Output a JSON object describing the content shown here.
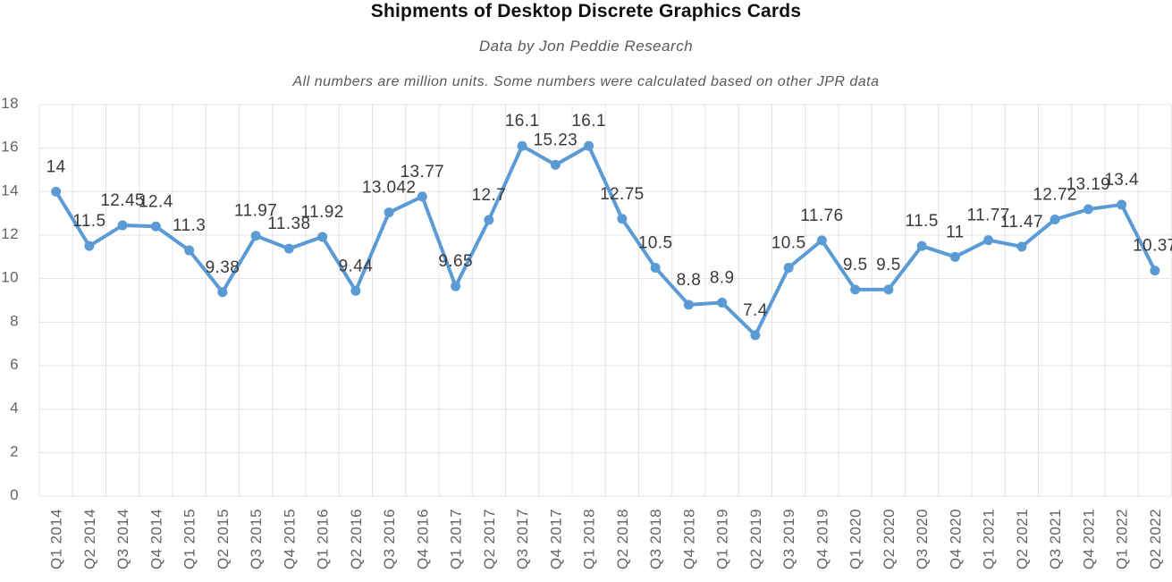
{
  "header": {
    "title": "Shipments of Desktop Discrete Graphics Cards",
    "subtitle_source": "Data by Jon Peddie Research",
    "subtitle_note": "All numbers are million units. Some numbers were calculated based on other JPR data"
  },
  "colors": {
    "line": "#5b9bd5",
    "marker": "#5b9bd5",
    "grid": "#e4e4e4",
    "axis_text": "#646464",
    "point_label_text": "#3a3a3a",
    "title_text": "#0f0f0f",
    "subtitle_text": "#595959",
    "background": "#ffffff"
  },
  "chart_data": {
    "type": "line",
    "title": "Shipments of Desktop Discrete Graphics Cards",
    "subtitle": "Data by Jon Peddie Research",
    "note": "All numbers are million units. Some numbers were calculated based on other JPR data",
    "unit": "million units",
    "categories": [
      "Q1 2014",
      "Q2 2014",
      "Q3 2014",
      "Q4 2014",
      "Q1 2015",
      "Q2 2015",
      "Q3 2015",
      "Q4 2015",
      "Q1 2016",
      "Q2 2016",
      "Q3 2016",
      "Q4 2016",
      "Q1 2017",
      "Q2 2017",
      "Q3 2017",
      "Q4 2017",
      "Q1 2018",
      "Q2 2018",
      "Q3 2018",
      "Q4 2018",
      "Q1 2019",
      "Q2 2019",
      "Q3 2019",
      "Q4 2019",
      "Q1 2020",
      "Q2 2020",
      "Q3 2020",
      "Q4 2020",
      "Q1 2021",
      "Q2 2021",
      "Q3 2021",
      "Q4 2021",
      "Q1 2022",
      "Q2 2022"
    ],
    "values": [
      14,
      11.5,
      12.45,
      12.4,
      11.3,
      9.38,
      11.97,
      11.38,
      11.92,
      9.44,
      13.042,
      13.77,
      9.65,
      12.7,
      16.1,
      15.23,
      16.1,
      12.75,
      10.5,
      8.8,
      8.9,
      7.4,
      10.5,
      11.76,
      9.5,
      9.5,
      11.5,
      11,
      11.77,
      11.47,
      12.72,
      13.19,
      13.4,
      10.37
    ],
    "point_labels": [
      "14",
      "11.5",
      "12.45",
      "12.4",
      "11.3",
      "9.38",
      "11.97",
      "11.38",
      "11.92",
      "9.44",
      "13.042",
      "13.77",
      "9.65",
      "12.7",
      "16.1",
      "15.23",
      "16.1",
      "12.75",
      "10.5",
      "8.8",
      "8.9",
      "7.4",
      "10.5",
      "11.76",
      "9.5",
      "9.5",
      "11.5",
      "11",
      "11.77",
      "11.47",
      "12.72",
      "13.19",
      "13.4",
      "10.37"
    ],
    "xlabel": "",
    "ylabel": "",
    "ylim": [
      0,
      18
    ],
    "yticks": [
      0,
      2,
      4,
      6,
      8,
      10,
      12,
      14,
      16,
      18
    ],
    "grid": "both",
    "legend": "none",
    "marker": "circle",
    "data_labels": "visible"
  }
}
